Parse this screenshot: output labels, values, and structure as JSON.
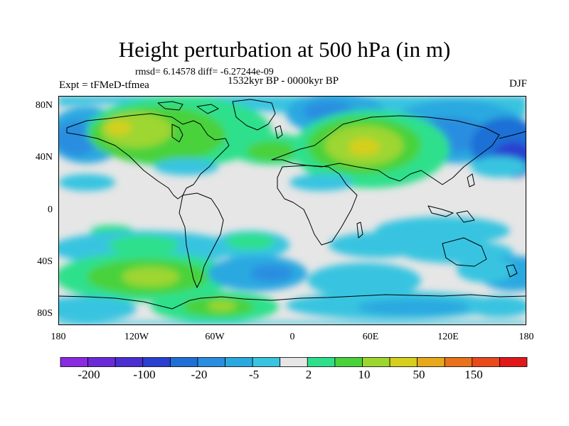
{
  "title": "Height perturbation at 500 hPa (in m)",
  "stats_text": "rmsd= 6.14578 diff= -6.27244e-09",
  "period_text": "1532kyr BP - 0000kyr BP",
  "experiment_text": "Expt = tFMeD-tfmea",
  "season_text": "DJF",
  "lat_ticks": [
    "80N",
    "40N",
    "0",
    "40S",
    "80S"
  ],
  "lon_ticks": [
    "180",
    "120W",
    "60W",
    "0",
    "60E",
    "120E",
    "180"
  ],
  "colorbar": {
    "labels": [
      "-200",
      "-100",
      "-20",
      "-5",
      "2",
      "10",
      "50",
      "150"
    ],
    "colors": [
      "#8a2be2",
      "#6a2ad8",
      "#4b2ed0",
      "#2a3fd0",
      "#1e6fd6",
      "#2a8ee0",
      "#2aa9e0",
      "#38c4e0",
      "#e6e6e6",
      "#2ee08c",
      "#49d23a",
      "#9ed630",
      "#d6cf1e",
      "#e8a81c",
      "#e8721c",
      "#e84a1c",
      "#e0181a"
    ]
  }
}
